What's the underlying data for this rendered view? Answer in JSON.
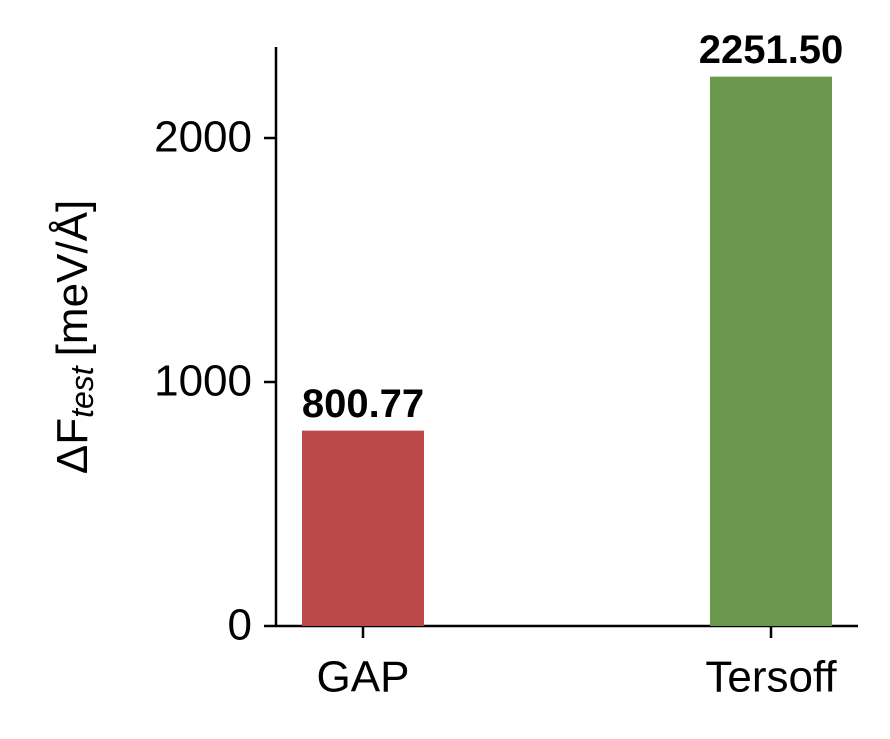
{
  "chart_data": {
    "type": "bar",
    "y_label": "ΔF",
    "y_label_subscript": "test",
    "y_label_unit": "[meV/Å]",
    "categories": [
      "GAP",
      "Tersoff"
    ],
    "values": [
      800.77,
      2251.5
    ],
    "value_labels": [
      "800.77",
      "2251.50"
    ],
    "colors": [
      "#bc494a",
      "#6a994e"
    ],
    "ylim": [
      0,
      2373
    ],
    "yticks": [
      0,
      1000,
      2000
    ],
    "grid": false
  }
}
